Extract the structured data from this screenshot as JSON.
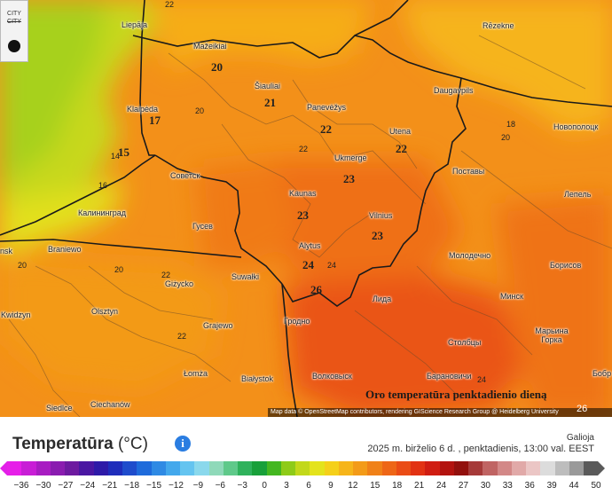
{
  "map": {
    "title": "Oro temperatūra penktadienio dieną",
    "attribution": "Map data © OpenStreetMap contributors, rendering GIScience Research Group @ Heidelberg University",
    "zoom_label": "26",
    "controls": {
      "city_toggle_line1": "CITY",
      "city_toggle_line2": "CITY"
    },
    "cities": [
      {
        "name": "Liepāja"
      },
      {
        "name": "Mažeikiai"
      },
      {
        "name": "Rēzekne"
      },
      {
        "name": "Šiauliai"
      },
      {
        "name": "Daugavpils"
      },
      {
        "name": "Klaipėda"
      },
      {
        "name": "Panevėžys"
      },
      {
        "name": "Utena"
      },
      {
        "name": "Новополоцк"
      },
      {
        "name": "Ukmergė"
      },
      {
        "name": "Поставы"
      },
      {
        "name": "Советск"
      },
      {
        "name": "Kaunas"
      },
      {
        "name": "Лепель"
      },
      {
        "name": "Калининград"
      },
      {
        "name": "Vilnius"
      },
      {
        "name": "Гусев"
      },
      {
        "name": "Alytus"
      },
      {
        "name": "Молодечно"
      },
      {
        "name": "Braniewo"
      },
      {
        "name": "Борисов"
      },
      {
        "name": "Suwałki"
      },
      {
        "name": "Giżycko"
      },
      {
        "name": "Лида"
      },
      {
        "name": "Минск"
      },
      {
        "name": "Kwidzyn"
      },
      {
        "name": "Olsztyn"
      },
      {
        "name": "Гродно"
      },
      {
        "name": "Grajewo"
      },
      {
        "name": "Столбцы"
      },
      {
        "name": "Марьина Горка"
      },
      {
        "name": "Łomża"
      },
      {
        "name": "Białystok"
      },
      {
        "name": "Волковыск"
      },
      {
        "name": "Барановичи"
      },
      {
        "name": "Ciechanów"
      },
      {
        "name": "Siedlce"
      },
      {
        "name": "nsk"
      },
      {
        "name": "Бобр"
      }
    ],
    "temps": [
      {
        "value": "20"
      },
      {
        "value": "21"
      },
      {
        "value": "17"
      },
      {
        "value": "22"
      },
      {
        "value": "22"
      },
      {
        "value": "15"
      },
      {
        "value": "23"
      },
      {
        "value": "23"
      },
      {
        "value": "23"
      },
      {
        "value": "24"
      },
      {
        "value": "26"
      },
      {
        "value": "20"
      },
      {
        "value": "20"
      },
      {
        "value": "18"
      },
      {
        "value": "14"
      },
      {
        "value": "16"
      },
      {
        "value": "22"
      },
      {
        "value": "20"
      },
      {
        "value": "20"
      },
      {
        "value": "22"
      },
      {
        "value": "22"
      },
      {
        "value": "24"
      },
      {
        "value": "22"
      },
      {
        "value": "24"
      }
    ]
  },
  "legend": {
    "title": "Temperatūra",
    "unit": "(°C)",
    "info_icon": "i",
    "valid_label": "Galioja",
    "valid_date": "2025 m. birželio 6 d. ,  penktadienis, 13:00 val. EEST",
    "tick_labels": [
      "−36",
      "−30",
      "−27",
      "−24",
      "−21",
      "−18",
      "−15",
      "−12",
      "−9",
      "−6",
      "−3",
      "0",
      "3",
      "6",
      "9",
      "12",
      "15",
      "18",
      "21",
      "24",
      "27",
      "30",
      "33",
      "36",
      "39",
      "44",
      "50"
    ],
    "colors": [
      "#e61fe8",
      "#c81ed6",
      "#a81dc2",
      "#8a1cb0",
      "#6d1aa0",
      "#4a17a2",
      "#2e1aa8",
      "#1f2dbb",
      "#1f4ccc",
      "#1f6bdb",
      "#2f8ae4",
      "#43a8ec",
      "#64c4f0",
      "#8ad8ec",
      "#8fd9b9",
      "#5fc98a",
      "#2fb25c",
      "#18a03a",
      "#44b720",
      "#8ecb18",
      "#c2d81a",
      "#e4e31c",
      "#f5d01a",
      "#f6b51a",
      "#f39b18",
      "#f08118",
      "#ee6617",
      "#ea4c16",
      "#e23213",
      "#d01d12",
      "#b3130f",
      "#92100d",
      "#a63a39",
      "#c06463",
      "#d38887",
      "#e1a9a8",
      "#ebc6c5",
      "#dcdcdc",
      "#bdbdbd",
      "#9a9a9a",
      "#5a5a5a"
    ]
  }
}
